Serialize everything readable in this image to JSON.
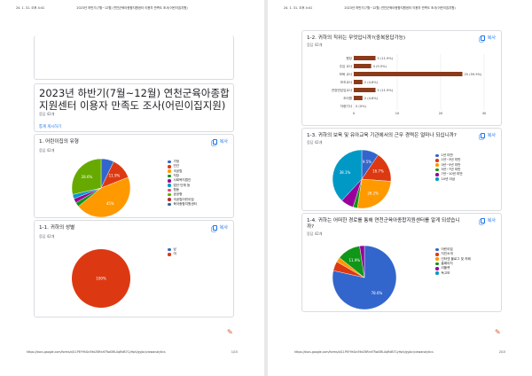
{
  "page1": {
    "header_left": "24. 1. 31. 오후 4:41",
    "header_center": "2023년 하반기(7월~12월) 연천군육아종합지원센터 이용자 만족도 조사(어린이집지원)",
    "footer_url": "https://docs.google.com/forms/d/11PEY9hGn59eZ6RnhTRwDRLUqRdB7CyHpV/gyjbc/viewanalytics",
    "footer_page": "1/15",
    "survey_title": "2023년 하반기(7월~12월) 연천군육아종합지원센터 이용자 만족도 조사(어린이집지원)",
    "response_count": "응답 42개",
    "view_summary": "통계 게시하기",
    "q1": {
      "title": "1. 어린이집의 유형",
      "count": "응답 42개",
      "copy": "복사",
      "chart_data": {
        "type": "pie",
        "categories": [
          "가정",
          "민간",
          "국공립",
          "직장",
          "사회복지법인",
          "법인·단체 등",
          "협동",
          "공공형",
          "국공립어린이집",
          "육아종합지원센터"
        ],
        "values": [
          7.1,
          11.9,
          45.2,
          2.4,
          2.4,
          2.4,
          0,
          28.6,
          0,
          0
        ],
        "data_labels": [
          "",
          "11.9%",
          "45%",
          "",
          "",
          "",
          "",
          "28.6%",
          "",
          ""
        ],
        "colors": [
          "#3366cc",
          "#dc3912",
          "#ff9900",
          "#109618",
          "#990099",
          "#0099c6",
          "#dd4477",
          "#66aa00",
          "#b82e2e",
          "#316395"
        ]
      }
    },
    "q1_1": {
      "title": "1-1. 귀하의 성별",
      "count": "응답 42개",
      "copy": "복사",
      "chart_data": {
        "type": "pie",
        "categories": [
          "남",
          "여"
        ],
        "values": [
          0,
          100
        ],
        "data_labels": [
          "",
          "100%"
        ],
        "colors": [
          "#3366cc",
          "#dc3912"
        ]
      }
    }
  },
  "page2": {
    "header_left": "24. 1. 31. 오후 4:41",
    "header_center": "2023년 하반기(7월~12월) 연천군육아종합지원센터 이용자 만족도 조사(어린이집지원)",
    "footer_url": "https://docs.google.com/forms/d/11PEY9hGn59eZ6RnhTRwDRLUqRdB7CyHpV/gyjbc/viewanalytics",
    "footer_page": "2/15",
    "q1_2": {
      "title": "1-2. 귀하의 직위는 무엇입니까?(중복응답가능)",
      "count": "응답 42개",
      "copy": "복사",
      "chart_data": {
        "type": "bar",
        "orientation": "horizontal",
        "categories": [
          "원장",
          "주임 교사",
          "보육 교사",
          "보조교사",
          "연장반담임교사",
          "조리원",
          "차량기사"
        ],
        "values": [
          5,
          4,
          25,
          2,
          5,
          2,
          0
        ],
        "data_labels": [
          "5 (11.9%)",
          "4 (9.5%)",
          "25 (59.5%)",
          "2 (4.8%)",
          "5 (11.9%)",
          "2 (4.8%)",
          "0 (0%)"
        ],
        "xticks": [
          "0",
          "10",
          "20",
          "30"
        ],
        "xlim": [
          0,
          30
        ],
        "color": "#8b3a1a"
      }
    },
    "q1_3": {
      "title": "1-3. 귀하의 보육 및 유아교육 기관에서의 근무 경력은 얼마나 되십니까?",
      "count": "응답 42개",
      "copy": "복사",
      "chart_data": {
        "type": "pie",
        "categories": [
          "1년 미만",
          "1년~3년 미만",
          "3년~5년 미만",
          "5년~7년 미만",
          "7년~10년 미만",
          "10년 이상"
        ],
        "values": [
          9.5,
          16.7,
          26.2,
          2.4,
          7.1,
          38.1
        ],
        "data_labels": [
          "9.5%",
          "16.7%",
          "26.2%",
          "",
          "",
          "38.1%"
        ],
        "colors": [
          "#3366cc",
          "#dc3912",
          "#ff9900",
          "#109618",
          "#990099",
          "#0099c6"
        ]
      }
    },
    "q1_4": {
      "title": "1-4. 귀하는 어떠한 경로를 통해 연천군육아종합지원센터를 알게 되셨습니까?",
      "count": "응답 42개",
      "copy": "복사",
      "chart_data": {
        "type": "pie",
        "categories": [
          "어린이집",
          "지인소개",
          "인터넷 블로그 및 카페",
          "홈페이지",
          "리플렛",
          "독고보"
        ],
        "values": [
          78.6,
          4.8,
          2.4,
          11.9,
          2.4,
          0
        ],
        "data_labels": [
          "78.6%",
          "",
          "",
          "11.9%",
          "",
          ""
        ],
        "colors": [
          "#3366cc",
          "#dc3912",
          "#ff9900",
          "#109618",
          "#990099",
          "#0099c6"
        ]
      }
    }
  }
}
